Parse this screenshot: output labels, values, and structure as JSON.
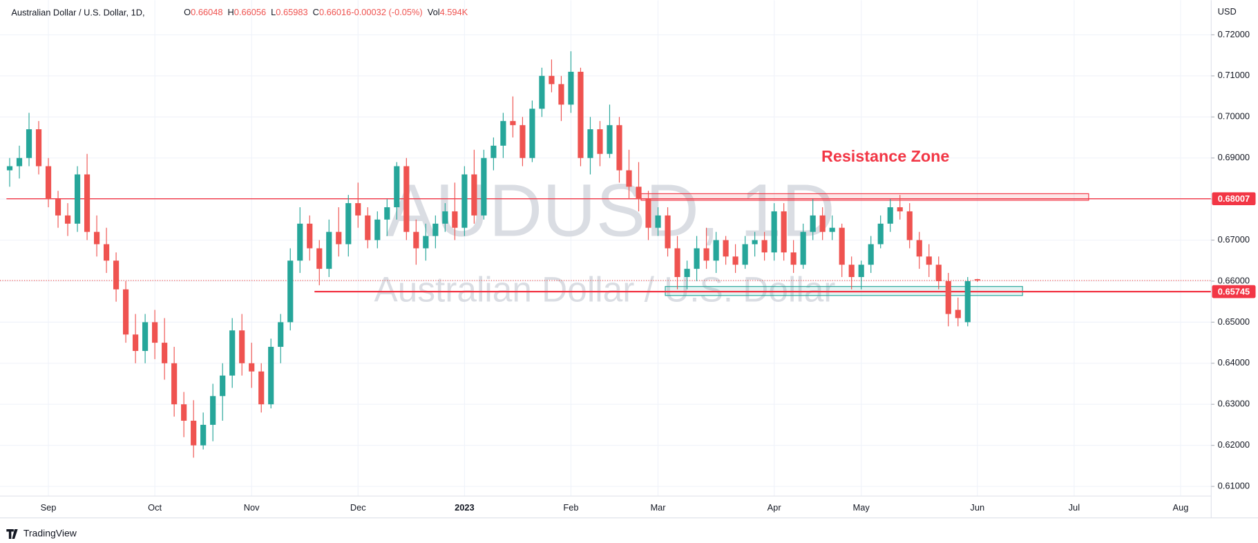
{
  "chart_data": {
    "type": "candlestick",
    "title": "Australian Dollar / U.S. Dollar, 1D,",
    "header": [
      {
        "key": "O",
        "value": "0.66048"
      },
      {
        "key": "H",
        "value": "0.66056"
      },
      {
        "key": "L",
        "value": "0.65983"
      },
      {
        "key": "C",
        "value": "0.66016"
      },
      {
        "key": "",
        "value": "-0.00032 (-0.05%)"
      },
      {
        "key": "Vol",
        "value": "4.594K"
      }
    ],
    "watermark": [
      "AUDUSD, 1D",
      "Australian Dollar / U.S. Dollar"
    ],
    "annotation": "Resistance Zone",
    "currency": "USD",
    "brand": "TradingView",
    "up_color": "#26a69a",
    "down_color": "#ef5350",
    "grid": true,
    "categories": [
      null,
      null,
      null,
      null,
      "Sep",
      null,
      null,
      null,
      null,
      null,
      null,
      null,
      null,
      null,
      null,
      "Oct",
      null,
      null,
      null,
      null,
      null,
      null,
      null,
      null,
      null,
      "Nov",
      null,
      null,
      null,
      null,
      null,
      null,
      null,
      null,
      null,
      null,
      "Dec",
      null,
      null,
      null,
      null,
      null,
      null,
      null,
      null,
      null,
      null,
      "2023",
      null,
      null,
      null,
      null,
      null,
      null,
      null,
      null,
      null,
      null,
      "Feb",
      null,
      null,
      null,
      null,
      null,
      null,
      null,
      null,
      "Mar",
      null,
      null,
      null,
      null,
      null,
      null,
      null,
      null,
      null,
      null,
      null,
      "Apr",
      null,
      null,
      null,
      null,
      null,
      null,
      null,
      null,
      "May",
      null,
      null,
      null,
      null,
      null,
      null,
      null,
      null,
      null,
      null,
      null,
      "Jun",
      null,
      null,
      null,
      null,
      null,
      null,
      null,
      null,
      null,
      "Jul",
      null,
      null,
      null,
      null,
      null,
      null,
      null,
      null,
      null,
      null,
      "Aug",
      null,
      null
    ],
    "open": [
      0.687,
      0.688,
      0.69,
      0.697,
      0.688,
      0.68,
      0.676,
      0.674,
      0.686,
      0.672,
      0.669,
      0.665,
      0.658,
      0.647,
      0.643,
      0.65,
      0.645,
      0.64,
      0.63,
      0.626,
      0.62,
      0.625,
      0.632,
      0.637,
      0.648,
      0.64,
      0.638,
      0.63,
      0.644,
      0.65,
      0.665,
      0.674,
      0.668,
      0.663,
      0.672,
      0.669,
      0.679,
      0.676,
      0.67,
      0.675,
      0.678,
      0.688,
      0.672,
      0.668,
      0.671,
      0.674,
      0.677,
      0.673,
      0.686,
      0.676,
      0.69,
      0.693,
      0.699,
      0.698,
      0.69,
      0.702,
      0.71,
      0.708,
      0.703,
      0.711,
      0.69,
      0.697,
      0.691,
      0.698,
      0.687,
      0.683,
      0.68,
      0.673,
      0.676,
      0.668,
      0.661,
      0.663,
      0.668,
      0.665,
      0.67,
      0.666,
      0.664,
      0.669,
      0.67,
      0.667,
      0.677,
      0.667,
      0.664,
      0.672,
      0.676,
      0.672,
      0.673,
      0.664,
      0.661,
      0.664,
      0.669,
      0.674,
      0.678,
      0.677,
      0.67,
      0.666,
      0.664,
      0.66,
      0.653,
      0.65,
      0.66048,
      null,
      null,
      null,
      null,
      null,
      null,
      null,
      null,
      null,
      null,
      null,
      null,
      null,
      null,
      null,
      null,
      null,
      null,
      null,
      null,
      null,
      null,
      null
    ],
    "high": [
      0.69,
      0.693,
      0.701,
      0.699,
      0.69,
      0.682,
      0.679,
      0.688,
      0.691,
      0.676,
      0.673,
      0.667,
      0.66,
      0.652,
      0.652,
      0.653,
      0.651,
      0.644,
      0.633,
      0.631,
      0.628,
      0.635,
      0.64,
      0.651,
      0.652,
      0.645,
      0.64,
      0.646,
      0.652,
      0.668,
      0.678,
      0.676,
      0.67,
      0.675,
      0.678,
      0.681,
      0.684,
      0.678,
      0.677,
      0.68,
      0.689,
      0.69,
      0.675,
      0.674,
      0.676,
      0.679,
      0.684,
      0.688,
      0.692,
      0.692,
      0.695,
      0.701,
      0.705,
      0.7,
      0.704,
      0.712,
      0.714,
      0.71,
      0.716,
      0.712,
      0.7,
      0.699,
      0.703,
      0.7,
      0.692,
      0.689,
      0.682,
      0.678,
      0.678,
      0.671,
      0.665,
      0.671,
      0.673,
      0.672,
      0.671,
      0.669,
      0.671,
      0.672,
      0.672,
      0.679,
      0.679,
      0.67,
      0.674,
      0.68,
      0.678,
      0.676,
      0.674,
      0.666,
      0.665,
      0.671,
      0.676,
      0.68,
      0.681,
      0.679,
      0.672,
      0.669,
      0.666,
      0.662,
      0.656,
      0.661,
      0.66056,
      null,
      null,
      null,
      null,
      null,
      null,
      null,
      null,
      null,
      null,
      null,
      null,
      null,
      null,
      null,
      null,
      null,
      null,
      null,
      null,
      null,
      null,
      null
    ],
    "low": [
      0.683,
      0.685,
      0.688,
      0.686,
      0.678,
      0.673,
      0.671,
      0.672,
      0.67,
      0.666,
      0.662,
      0.655,
      0.645,
      0.64,
      0.64,
      0.641,
      0.636,
      0.627,
      0.622,
      0.617,
      0.619,
      0.621,
      0.626,
      0.634,
      0.637,
      0.634,
      0.628,
      0.629,
      0.64,
      0.648,
      0.662,
      0.665,
      0.659,
      0.661,
      0.666,
      0.666,
      0.673,
      0.668,
      0.668,
      0.671,
      0.675,
      0.67,
      0.664,
      0.665,
      0.668,
      0.672,
      0.67,
      0.671,
      0.674,
      0.675,
      0.687,
      0.69,
      0.695,
      0.688,
      0.689,
      0.7,
      0.706,
      0.699,
      0.701,
      0.688,
      0.686,
      0.688,
      0.69,
      0.684,
      0.68,
      0.677,
      0.67,
      0.671,
      0.666,
      0.658,
      0.658,
      0.66,
      0.663,
      0.662,
      0.664,
      0.662,
      0.663,
      0.666,
      0.665,
      0.665,
      0.665,
      0.662,
      0.663,
      0.67,
      0.67,
      0.67,
      0.661,
      0.658,
      0.658,
      0.662,
      0.668,
      0.672,
      0.675,
      0.668,
      0.663,
      0.661,
      0.658,
      0.649,
      0.649,
      0.649,
      0.65983,
      null,
      null,
      null,
      null,
      null,
      null,
      null,
      null,
      null,
      null,
      null,
      null,
      null,
      null,
      null,
      null,
      null,
      null,
      null,
      null,
      null,
      null,
      null
    ],
    "close": [
      0.688,
      0.69,
      0.697,
      0.688,
      0.68,
      0.676,
      0.674,
      0.686,
      0.672,
      0.669,
      0.665,
      0.658,
      0.647,
      0.643,
      0.65,
      0.645,
      0.64,
      0.63,
      0.626,
      0.62,
      0.625,
      0.632,
      0.637,
      0.648,
      0.64,
      0.638,
      0.63,
      0.644,
      0.65,
      0.665,
      0.674,
      0.668,
      0.663,
      0.672,
      0.669,
      0.679,
      0.676,
      0.67,
      0.675,
      0.678,
      0.688,
      0.672,
      0.668,
      0.671,
      0.674,
      0.677,
      0.673,
      0.686,
      0.676,
      0.69,
      0.693,
      0.699,
      0.698,
      0.69,
      0.702,
      0.71,
      0.708,
      0.703,
      0.711,
      0.69,
      0.697,
      0.691,
      0.698,
      0.687,
      0.683,
      0.68,
      0.673,
      0.676,
      0.668,
      0.661,
      0.663,
      0.668,
      0.665,
      0.67,
      0.666,
      0.664,
      0.669,
      0.67,
      0.667,
      0.677,
      0.667,
      0.664,
      0.672,
      0.676,
      0.672,
      0.673,
      0.664,
      0.661,
      0.664,
      0.669,
      0.674,
      0.678,
      0.677,
      0.67,
      0.666,
      0.664,
      0.66,
      0.652,
      0.651,
      0.66,
      0.66016,
      null,
      null,
      null,
      null,
      null,
      null,
      null,
      null,
      null,
      null,
      null,
      null,
      null,
      null,
      null,
      null,
      null,
      null,
      null,
      null,
      null,
      null,
      null
    ],
    "ylim": [
      0.60764,
      0.72747
    ],
    "yticks": [
      {
        "value": 0.61,
        "label": "0.61000"
      },
      {
        "value": 0.62,
        "label": "0.62000"
      },
      {
        "value": 0.63,
        "label": "0.63000"
      },
      {
        "value": 0.64,
        "label": "0.64000"
      },
      {
        "value": 0.65,
        "label": "0.65000"
      },
      {
        "value": 0.66,
        "label": "0.66000"
      },
      {
        "value": 0.67,
        "label": "0.67000"
      },
      {
        "value": 0.68,
        "label": "0.68000"
      },
      {
        "value": 0.69,
        "label": "0.69000"
      },
      {
        "value": 0.7,
        "label": "0.70000"
      },
      {
        "value": 0.71,
        "label": "0.71000"
      },
      {
        "value": 0.72,
        "label": "0.72000"
      }
    ],
    "levels": [
      {
        "value": 0.68007,
        "color": "#f23645"
      },
      {
        "value": 0.65745,
        "color": "#f23645"
      }
    ],
    "zones": [
      {
        "top": 0.6813,
        "bottom": 0.6797,
        "color": "#f23645"
      },
      {
        "top": 0.6587,
        "bottom": 0.6565,
        "color": "#26a69a"
      }
    ]
  }
}
